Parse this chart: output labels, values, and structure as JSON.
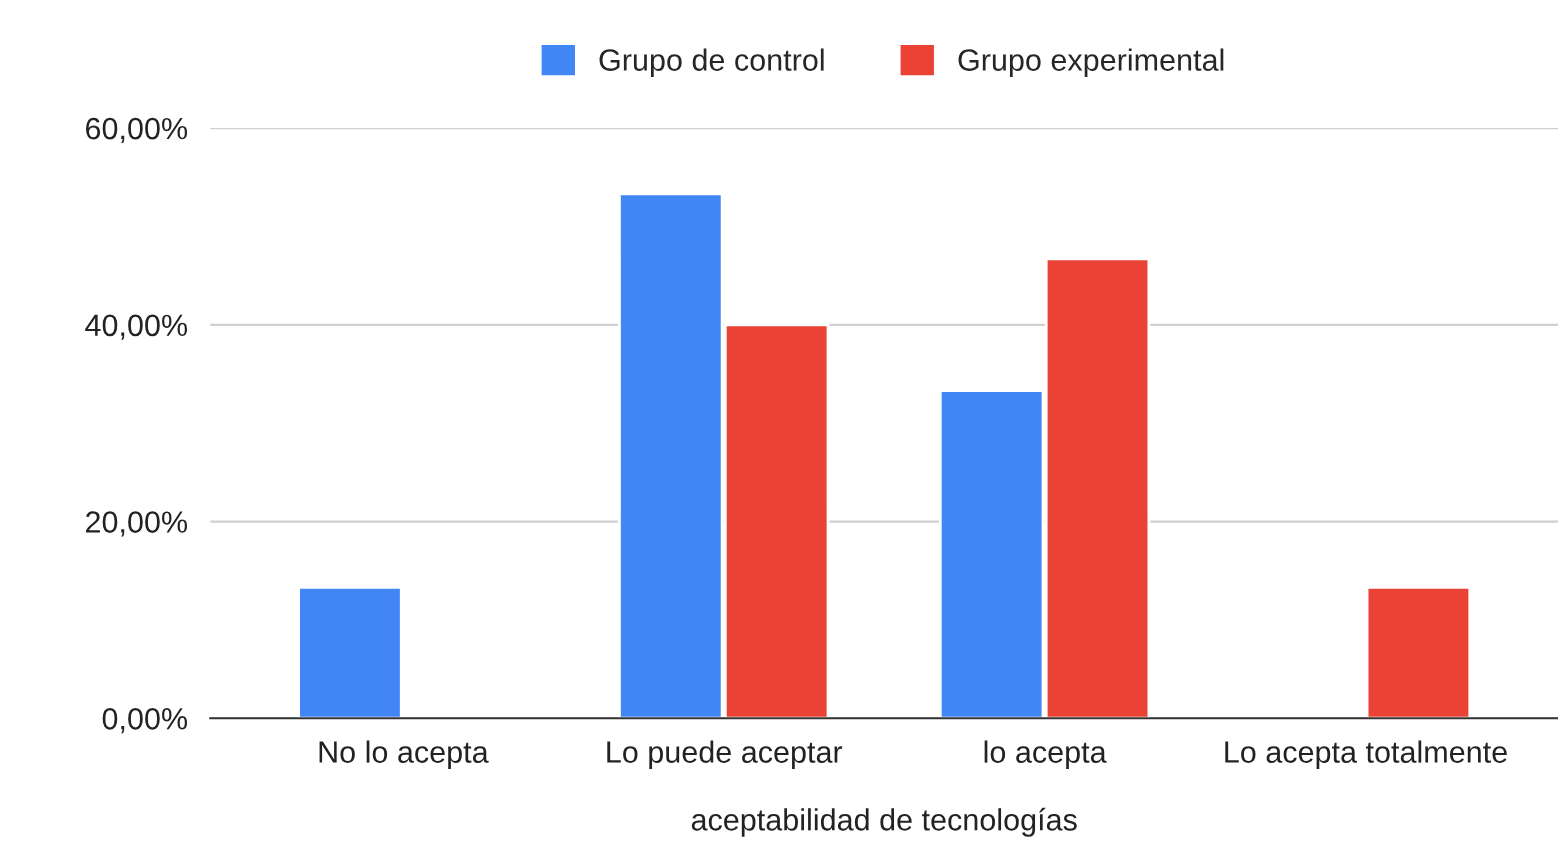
{
  "chart_data": {
    "type": "bar",
    "xlabel": "aceptabilidad de tecnologías",
    "categories": [
      "No lo acepta",
      "Lo puede aceptar",
      "lo acepta",
      "Lo acepta totalmente"
    ],
    "series": [
      {
        "name": "Grupo de control",
        "color": "#4285f4",
        "values": [
          13.3,
          53.3,
          33.3,
          null
        ]
      },
      {
        "name": "Grupo experimental",
        "color": "#ea4335",
        "values": [
          null,
          40,
          46.7,
          13.3
        ]
      }
    ],
    "ylim": [
      0,
      60
    ],
    "yticks": [
      {
        "value": 0,
        "label": "0,00%"
      },
      {
        "value": 20,
        "label": "20,00%"
      },
      {
        "value": 40,
        "label": "40,00%"
      },
      {
        "value": 60,
        "label": "60,00%"
      }
    ],
    "grid": "y",
    "legend": "top"
  }
}
